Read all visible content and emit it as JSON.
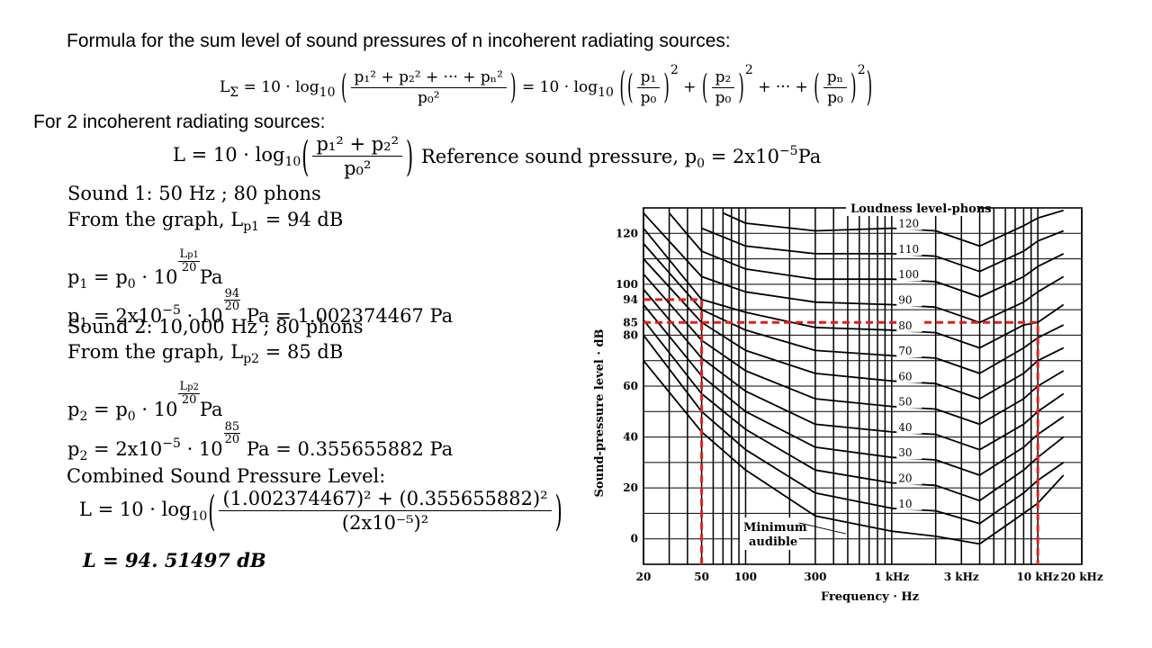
{
  "heading_general": "Formula for the sum level of sound pressures of n incoherent radiating sources:",
  "formula_general": {
    "lhs": "L",
    "lhs_sub": "Σ",
    "eq1": "= 10 · log",
    "log_base": "10",
    "numerator": "p₁² + p₂² + ··· + pₙ²",
    "denominator": "p₀²",
    "eq2": "= 10 · log",
    "ratio1_num": "p₁",
    "ratio2_num": "p₂",
    "ration_num": "pₙ",
    "ratio_den": "p₀",
    "square": "2",
    "plus": "+",
    "plus_dots": "+ ··· +"
  },
  "heading_two": "For 2 incoherent radiating sources:",
  "formula_two": {
    "lhs": "L = 10 · log",
    "log_base": "10",
    "numerator": "p₁² + p₂²",
    "denominator": "p₀²"
  },
  "reference": {
    "label": "Reference sound pressure, p",
    "sub": "0",
    "eq": " = 2x10",
    "exp": "−5",
    "unit": "Pa"
  },
  "sound1": {
    "title": "Sound 1: 50 Hz ; 80 phons",
    "graph_prefix": "From the graph, L",
    "graph_sub": "p1",
    "graph_value": " = 94 dB",
    "p_lhs": "p",
    "p_sub": "1",
    "p_eq": " = p",
    "p0_sub": "0",
    "p_times": " · 10",
    "exp_num": "L",
    "exp_num_sub": "p1",
    "exp_den": "20",
    "unit": "Pa",
    "calc_eq": " = 2x10",
    "calc_exp": "−5",
    "calc_times": " · 10",
    "calc_exp_num": "94",
    "calc_exp_den": "20",
    "calc_result": "Pa = 1.002374467 Pa"
  },
  "sound2": {
    "title": "Sound 2: 10,000 Hz ; 80 phons",
    "graph_prefix": "From the graph, L",
    "graph_sub": "p2",
    "graph_value": " = 85 dB",
    "p_lhs": "p",
    "p_sub": "2",
    "p_eq": " = p",
    "p0_sub": "0",
    "p_times": " · 10",
    "exp_num": "L",
    "exp_num_sub": "p2",
    "exp_den": "20",
    "unit": "Pa",
    "calc_eq": " = 2x10",
    "calc_exp": "−5",
    "calc_times": " · 10",
    "calc_exp_num": "85",
    "calc_exp_den": "20",
    "calc_result": "Pa = 0.355655882 Pa"
  },
  "combined": {
    "heading": "Combined Sound Pressure Level:",
    "lhs": "L = 10 · log",
    "log_base": "10",
    "numerator": "(1.002374467)² + (0.355655882)²",
    "denominator": "(2x10⁻⁵)²",
    "result": "L = 94. 51497 dB"
  },
  "chart_data": {
    "type": "line",
    "title": "Loudness level-phons",
    "xlabel": "Frequency · Hz",
    "ylabel": "Sound-pressure level · dB",
    "x_scale": "log",
    "x_ticks": [
      20,
      50,
      100,
      300,
      1000,
      3000,
      10000,
      20000
    ],
    "x_tick_labels": [
      "20",
      "50",
      "100",
      "300",
      "1 kHz",
      "3 kHz",
      "10 kHz",
      "20 kHz"
    ],
    "y_ticks": [
      0,
      20,
      40,
      60,
      80,
      85,
      94,
      100,
      120
    ],
    "y_tick_labels": [
      "0",
      "20",
      "40",
      "60",
      "80",
      "85",
      "94",
      "100",
      "120"
    ],
    "ylim": [
      -10,
      130
    ],
    "xlim": [
      20,
      20000
    ],
    "grid": true,
    "series": [
      {
        "name": "Minimum audible",
        "x": [
          20,
          50,
          100,
          300,
          1000,
          2000,
          4000,
          8000,
          10000,
          15000
        ],
        "y": [
          70,
          42,
          27,
          9,
          3,
          1,
          -2,
          10,
          14,
          25
        ]
      },
      {
        "name": "10",
        "x": [
          20,
          50,
          100,
          300,
          1000,
          2000,
          4000,
          8000,
          10000,
          15000
        ],
        "y": [
          80,
          50,
          35,
          18,
          12,
          11,
          6,
          18,
          23,
          30
        ]
      },
      {
        "name": "20",
        "x": [
          20,
          50,
          100,
          300,
          1000,
          2000,
          4000,
          8000,
          10000,
          15000
        ],
        "y": [
          86,
          57,
          43,
          27,
          22,
          21,
          15,
          27,
          32,
          40
        ]
      },
      {
        "name": "30",
        "x": [
          20,
          50,
          100,
          300,
          1000,
          2000,
          4000,
          8000,
          10000,
          15000
        ],
        "y": [
          92,
          64,
          50,
          36,
          32,
          31,
          25,
          36,
          41,
          48
        ]
      },
      {
        "name": "40",
        "x": [
          20,
          50,
          100,
          300,
          1000,
          2000,
          4000,
          8000,
          10000,
          15000
        ],
        "y": [
          98,
          71,
          58,
          45,
          42,
          41,
          35,
          45,
          50,
          57
        ]
      },
      {
        "name": "50",
        "x": [
          20,
          50,
          100,
          300,
          1000,
          2000,
          4000,
          8000,
          10000,
          15000
        ],
        "y": [
          104,
          78,
          66,
          55,
          52,
          51,
          45,
          55,
          60,
          66
        ]
      },
      {
        "name": "60",
        "x": [
          20,
          50,
          100,
          300,
          1000,
          2000,
          4000,
          8000,
          10000,
          15000
        ],
        "y": [
          110,
          85,
          74,
          65,
          62,
          61,
          55,
          65,
          70,
          75
        ]
      },
      {
        "name": "70",
        "x": [
          20,
          50,
          100,
          300,
          1000,
          2000,
          4000,
          8000,
          10000,
          15000
        ],
        "y": [
          116,
          90,
          82,
          74,
          72,
          71,
          65,
          75,
          79,
          84
        ]
      },
      {
        "name": "80",
        "x": [
          20,
          50,
          100,
          300,
          1000,
          2000,
          4000,
          8000,
          10000,
          15000
        ],
        "y": [
          122,
          94,
          89,
          83,
          82,
          81,
          75,
          84,
          85,
          92
        ]
      },
      {
        "name": "90",
        "x": [
          20,
          50,
          100,
          300,
          1000,
          2000,
          4000,
          8000,
          10000,
          15000
        ],
        "y": [
          128,
          103,
          97,
          93,
          92,
          91,
          85,
          93,
          97,
          103
        ]
      },
      {
        "name": "100",
        "x": [
          30,
          50,
          100,
          300,
          1000,
          2000,
          4000,
          8000,
          10000,
          15000
        ],
        "y": [
          128,
          113,
          106,
          102,
          102,
          101,
          95,
          103,
          107,
          112
        ]
      },
      {
        "name": "110",
        "x": [
          50,
          100,
          300,
          1000,
          2000,
          4000,
          8000,
          10000,
          15000
        ],
        "y": [
          122,
          115,
          112,
          112,
          111,
          105,
          113,
          117,
          121
        ]
      },
      {
        "name": "120",
        "x": [
          70,
          100,
          300,
          1000,
          2000,
          4000,
          8000,
          10000,
          15000
        ],
        "y": [
          128,
          124,
          121,
          122,
          121,
          115,
          123,
          126,
          129
        ]
      }
    ],
    "annotations": {
      "source1": {
        "x": 50,
        "y": 94
      },
      "source2": {
        "x": 10000,
        "y": 85
      },
      "marker_color": "#e0201c"
    }
  }
}
